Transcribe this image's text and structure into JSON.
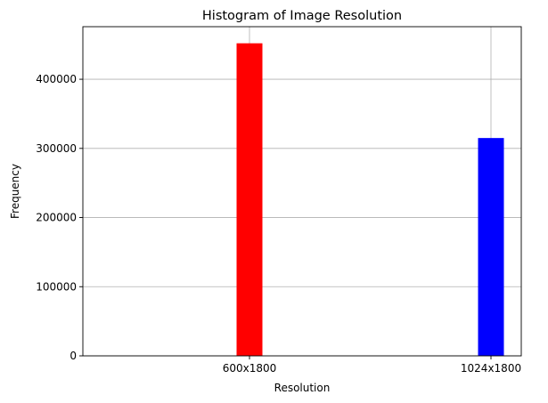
{
  "chart_data": {
    "type": "bar",
    "title": "Histogram of Image Resolution",
    "xlabel": "Resolution",
    "ylabel": "Frequency",
    "categories": [
      "600x1800",
      "1024x1800"
    ],
    "values": [
      452000,
      315000
    ],
    "colors": [
      "#ff0000",
      "#0000ff"
    ],
    "ylim": [
      0,
      476000
    ],
    "yticks": [
      0,
      100000,
      200000,
      300000,
      400000
    ],
    "grid": true
  }
}
